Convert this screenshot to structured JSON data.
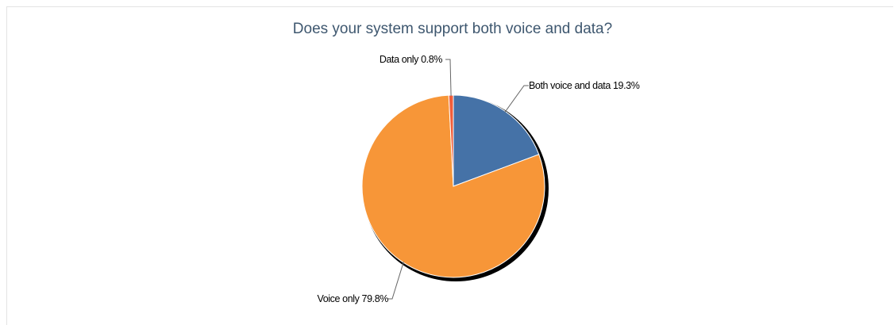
{
  "chart_data": {
    "type": "pie",
    "title": "Does your system support both voice and data?",
    "slices": [
      {
        "name": "Both voice and data",
        "value": 19.3,
        "label": "Both voice and data 19.3%",
        "color": "#4572a7"
      },
      {
        "name": "Voice only",
        "value": 79.8,
        "label": "Voice only 79.8%",
        "color": "#f79638"
      },
      {
        "name": "Data only",
        "value": 0.8,
        "label": "Data only 0.8%",
        "color": "#f25e3a"
      }
    ]
  }
}
